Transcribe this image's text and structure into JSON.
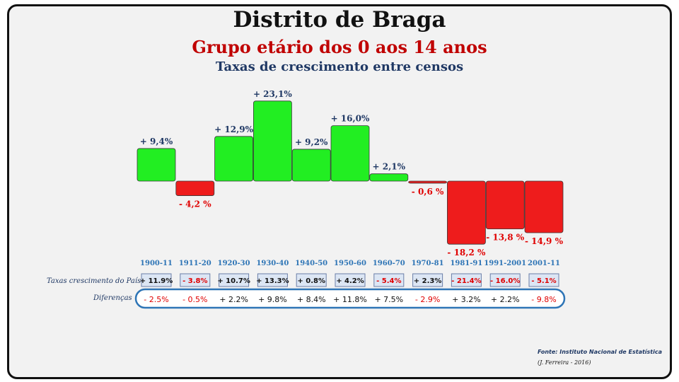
{
  "title": "Distrito de Braga",
  "subtitle": "Grupo etário dos 0 aos 14 anos",
  "subtitle2": "Taxas de crescimento entre censos",
  "row_label_country": "Taxas crescimento do País",
  "row_label_diff": "Diferenças",
  "source": "Fonte: Instituto Nacional de Estatística",
  "author": "(J. Ferreira - 2016)",
  "colors": {
    "positive": "#22ee22",
    "negative": "#ee1c1c",
    "pos_text": "#1f3864",
    "neg_text": "#e00000",
    "axis_label": "#2e75b6"
  },
  "chart_data": {
    "type": "bar",
    "categories": [
      "1900-11",
      "1911-20",
      "1920-30",
      "1930-40",
      "1940-50",
      "1950-60",
      "1960-70",
      "1970-81",
      "1981-91",
      "1991-2001",
      "2001-11"
    ],
    "values": [
      9.4,
      -4.2,
      12.9,
      23.1,
      9.2,
      16.0,
      2.1,
      -0.6,
      -18.2,
      -13.8,
      -14.9
    ],
    "value_labels": [
      "+ 9,4%",
      "- 4,2 %",
      "+ 12,9%",
      "+ 23,1%",
      "+ 9,2%",
      "+ 16,0%",
      "+ 2,1%",
      "- 0,6 %",
      "- 18,2 %",
      "- 13,8 %",
      "- 14,9 %"
    ],
    "country_rates": [
      "+ 11.9%",
      "- 3.8%",
      "+ 10.7%",
      "+ 13.3%",
      "+ 0.8%",
      "+ 4.2%",
      "- 5.4%",
      "+ 2.3%",
      "- 21.4%",
      "- 16.0%",
      "- 5.1%"
    ],
    "differences": [
      "- 2.5%",
      "- 0.5%",
      "+ 2.2%",
      "+ 9.8%",
      "+ 8.4%",
      "+ 11.8%",
      "+ 7.5%",
      "- 2.9%",
      "+ 3.2%",
      "+ 2.2%",
      "- 9.8%"
    ]
  }
}
